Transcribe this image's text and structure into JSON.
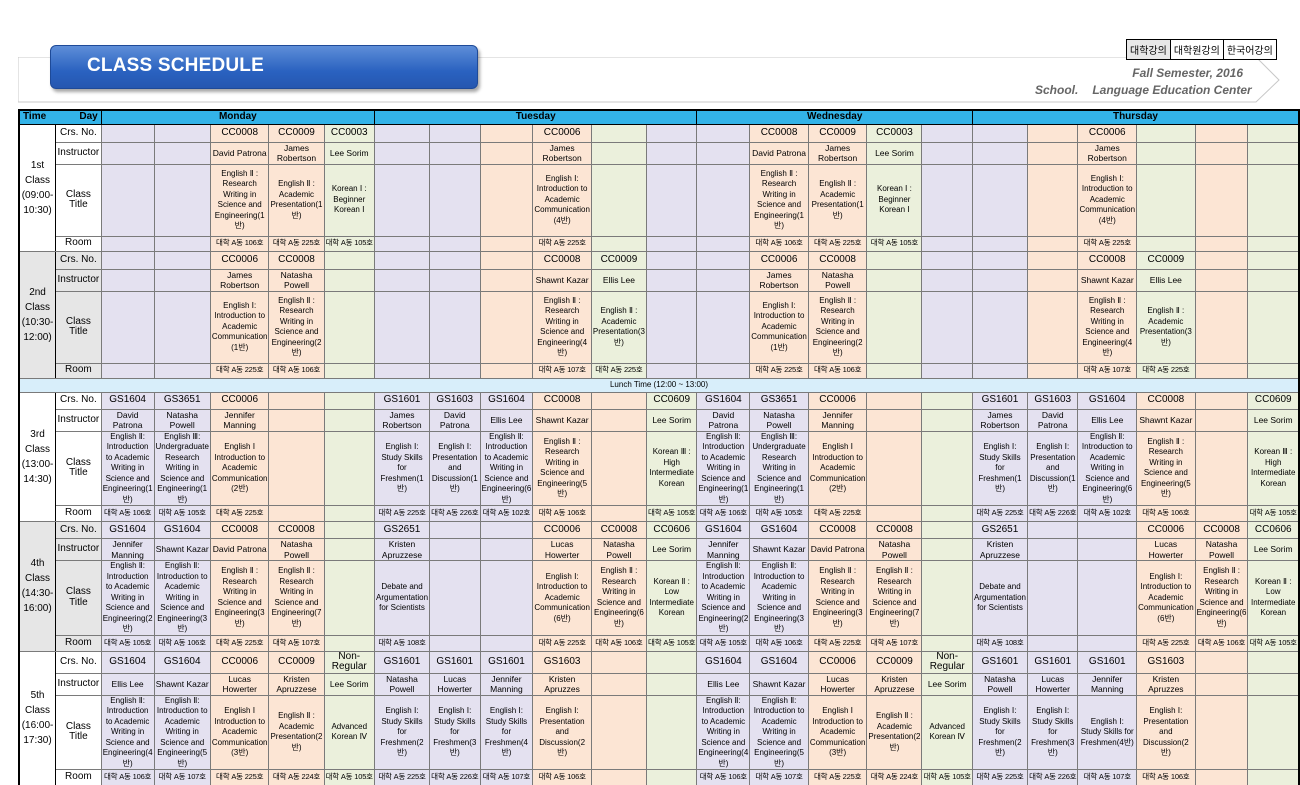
{
  "header": {
    "title": "CLASS SCHEDULE",
    "semester": "Fall Semester, 2016",
    "school_label": "School.",
    "center": "Language Education Center",
    "lang_tabs": [
      "대학강의",
      "대학원강의",
      "한국어강의"
    ]
  },
  "table": {
    "time_label": "Time",
    "day_label": "Day",
    "days": [
      "Monday",
      "Tuesday",
      "Wednesday",
      "Thursday"
    ],
    "row_labels": {
      "code": "Crs. No.",
      "instructor": "Instructor",
      "title": "Class Title",
      "room": "Room"
    },
    "lunch": "Lunch Time (12:00 ~ 13:00)",
    "colors": {
      "col1": "#e4e1f0",
      "col2": "#e4e1f0",
      "col3": "#fce5d4",
      "col4": "#fce5d4",
      "col5": "#ebf0dc",
      "header": "#33b3e8",
      "lunch": "#d8eefa"
    },
    "periods": [
      {
        "label": "1st Class (09:00-10:30)",
        "code": [
          "",
          "",
          "CC0008",
          "CC0009",
          "CC0003",
          "",
          "",
          "",
          "CC0006",
          "",
          "",
          "",
          "CC0008",
          "CC0009",
          "CC0003",
          "",
          "",
          "",
          "CC0006",
          ""
        ],
        "instructor": [
          "",
          "",
          "David Patrona",
          "James Robertson",
          "Lee Sorim",
          "",
          "",
          "",
          "James Robertson",
          "",
          "",
          "",
          "David Patrona",
          "James Robertson",
          "Lee Sorim",
          "",
          "",
          "",
          "James Robertson",
          ""
        ],
        "title": [
          "",
          "",
          "English Ⅱ : Research Writing in Science and Engineering(1반)",
          "English Ⅱ : Academic Presentation(1반)",
          "Korean Ⅰ : Beginner Korean Ⅰ",
          "",
          "",
          "",
          "English Ⅰ: Introduction to Academic Communication (4반)",
          "",
          "",
          "",
          "English Ⅱ : Research Writing in Science and Engineering(1반)",
          "English Ⅱ : Academic Presentation(1반)",
          "Korean Ⅰ : Beginner Korean Ⅰ",
          "",
          "",
          "",
          "English Ⅰ: Introduction to Academic Communication (4반)",
          ""
        ],
        "room": [
          "",
          "",
          "대학 A동 106호",
          "대학 A동 225호",
          "대학 A동 105호",
          "",
          "",
          "",
          "대학 A동 225호",
          "",
          "",
          "",
          "대학 A동 106호",
          "대학 A동 225호",
          "대학 A동 105호",
          "",
          "",
          "",
          "대학 A동 225호",
          ""
        ]
      },
      {
        "label": "2nd Class (10:30-12:00)",
        "code": [
          "",
          "",
          "CC0006",
          "CC0008",
          "",
          "",
          "",
          "",
          "CC0008",
          "CC0009",
          "",
          "",
          "CC0006",
          "CC0008",
          "",
          "",
          "",
          "",
          "CC0008",
          "CC0009"
        ],
        "instructor": [
          "",
          "",
          "James Robertson",
          "Natasha Powell",
          "",
          "",
          "",
          "",
          "Shawnt Kazar",
          "Ellis Lee",
          "",
          "",
          "James Robertson",
          "Natasha Powell",
          "",
          "",
          "",
          "",
          "Shawnt Kazar",
          "Ellis Lee"
        ],
        "title": [
          "",
          "",
          "English Ⅰ: Introduction to Academic Communication (1반)",
          "English Ⅱ : Research Writing in Science and Engineering(2반)",
          "",
          "",
          "",
          "",
          "English Ⅱ : Research Writing in Science and Engineering(4반)",
          "English Ⅱ : Academic Presentation(3반)",
          "",
          "",
          "English Ⅰ: Introduction to Academic Communication (1반)",
          "English Ⅱ : Research Writing in Science and Engineering(2반)",
          "",
          "",
          "",
          "",
          "English Ⅱ : Research Writing in Science and Engineering(4반)",
          "English Ⅱ : Academic Presentation(3반)"
        ],
        "room": [
          "",
          "",
          "대학 A동 225호",
          "대학 A동 106호",
          "",
          "",
          "",
          "",
          "대학 A동 107호",
          "대학 A동 225호",
          "",
          "",
          "대학 A동 225호",
          "대학 A동 106호",
          "",
          "",
          "",
          "",
          "대학 A동 107호",
          "대학 A동 225호"
        ]
      },
      {
        "label": "3rd Class (13:00-14:30)",
        "code": [
          "GS1604",
          "GS3651",
          "CC0006",
          "",
          "",
          "GS1601",
          "GS1603",
          "GS1604",
          "CC0008",
          "",
          "CC0609",
          "GS1604",
          "GS3651",
          "CC0006",
          "",
          "",
          "GS1601",
          "GS1603",
          "GS1604",
          "CC0008",
          "",
          "CC0609"
        ],
        "instructor": [
          "David Patrona",
          "Natasha Powell",
          "Jennifer Manning",
          "",
          "",
          "James Robertson",
          "David Patrona",
          "Ellis Lee",
          "Shawnt Kazar",
          "",
          "Lee Sorim",
          "David Patrona",
          "Natasha Powell",
          "Jennifer Manning",
          "",
          "",
          "James Robertson",
          "David Patrona",
          "Ellis Lee",
          "Shawnt Kazar",
          "",
          "Lee Sorim"
        ],
        "title": [
          "English Ⅱ: Introduction to Academic Writing in Science and Engineering(1반)",
          "English Ⅲ: Undergraduate Research Writing in Science and Engineering(1반)",
          "English Ⅰ Introduction to Academic Communication (2반)",
          "",
          "",
          "English Ⅰ: Study Skills for Freshmen(1반)",
          "English Ⅰ: Presentation and Discussion(1반)",
          "English Ⅱ: Introduction to Academic Writing in Science and Engineering(6반)",
          "English Ⅱ : Research Writing in Science and Engineering(5반)",
          "",
          "Korean Ⅲ : High Intermediate Korean",
          "English Ⅱ: Introduction to Academic Writing in Science and Engineering(1반)",
          "English Ⅲ: Undergraduate Research Writing in Science and Engineering(1반)",
          "English Ⅰ Introduction to Academic Communication (2반)",
          "",
          "",
          "English Ⅰ: Study Skills for Freshmen(1반)",
          "English Ⅰ: Presentation and Discussion(1반)",
          "English Ⅱ: Introduction to Academic Writing in Science and Engineering(6반)",
          "English Ⅱ : Research Writing in Science and Engineering(5반)",
          "",
          "Korean Ⅲ : High Intermediate Korean"
        ],
        "room": [
          "대학 A동 106호",
          "대학 A동 105호",
          "대학 A동 225호",
          "",
          "",
          "대학 A동 225호",
          "대학 A동 226호",
          "대학 A동 102호",
          "대학 A동 106호",
          "",
          "대학 A동 105호",
          "대학 A동 106호",
          "대학 A동 105호",
          "대학 A동 225호",
          "",
          "",
          "대학 A동 225호",
          "대학 A동 226호",
          "대학 A동 102호",
          "대학 A동 106호",
          "",
          "대학 A동 105호"
        ]
      },
      {
        "label": "4th Class (14:30-16:00)",
        "code": [
          "GS1604",
          "GS1604",
          "CC0008",
          "CC0008",
          "",
          "GS2651",
          "",
          "",
          "CC0006",
          "CC0008",
          "CC0606",
          "GS1604",
          "GS1604",
          "CC0008",
          "CC0008",
          "",
          "GS2651",
          "",
          "",
          "CC0006",
          "CC0008",
          "CC0606"
        ],
        "instructor": [
          "Jennifer Manning",
          "Shawnt Kazar",
          "David Patrona",
          "Natasha Powell",
          "",
          "Kristen Apruzzese",
          "",
          "",
          "Lucas Howerter",
          "Natasha Powell",
          "Lee Sorim",
          "Jennifer Manning",
          "Shawnt Kazar",
          "David Patrona",
          "Natasha Powell",
          "",
          "Kristen Apruzzese",
          "",
          "",
          "Lucas Howerter",
          "Natasha Powell",
          "Lee Sorim"
        ],
        "title": [
          "English Ⅱ: Introduction to Academic Writing in Science and Engineering(2반)",
          "English Ⅱ: Introduction to Academic Writing in Science and Engineering(3반)",
          "English Ⅱ : Research Writing in Science and Engineering(3반)",
          "English Ⅱ : Research Writing in Science and Engineering(7반)",
          "",
          "Debate and Argumentation for Scientists",
          "",
          "",
          "English Ⅰ: Introduction to Academic Communication (6반)",
          "English Ⅱ : Research Writing in Science and Engineering(6반)",
          "Korean Ⅱ : Low Intermediate Korean",
          "English Ⅱ: Introduction to Academic Writing in Science and Engineering(2반)",
          "English Ⅱ: Introduction to Academic Writing in Science and Engineering(3반)",
          "English Ⅱ : Research Writing in Science and Engineering(3반)",
          "English Ⅱ : Research Writing in Science and Engineering(7반)",
          "",
          "Debate and Argumentation for Scientists",
          "",
          "",
          "English Ⅰ: Introduction to Academic Communication (6반)",
          "English Ⅱ : Research Writing in Science and Engineering(6반)",
          "Korean Ⅱ : Low Intermediate Korean"
        ],
        "room": [
          "대학 A동 105호",
          "대학 A동 106호",
          "대학 A동 225호",
          "대학 A동 107호",
          "",
          "대학 A동 108호",
          "",
          "",
          "대학 A동 225호",
          "대학 A동 106호",
          "대학 A동 105호",
          "대학 A동 105호",
          "대학 A동 106호",
          "대학 A동 225호",
          "대학 A동 107호",
          "",
          "대학 A동 108호",
          "",
          "",
          "대학 A동 225호",
          "대학 A동 106호",
          "대학 A동 105호"
        ]
      },
      {
        "label": "5th Class (16:00-17:30)",
        "code": [
          "GS1604",
          "GS1604",
          "CC0006",
          "CC0009",
          "Non-Regular",
          "GS1601",
          "GS1601",
          "GS1601",
          "GS1603",
          "",
          "",
          "GS1604",
          "GS1604",
          "CC0006",
          "CC0009",
          "Non-Regular",
          "GS1601",
          "GS1601",
          "GS1601",
          "GS1603",
          "",
          ""
        ],
        "instructor": [
          "Ellis Lee",
          "Shawnt Kazar",
          "Lucas Howerter",
          "Kristen Apruzzese",
          "Lee Sorim",
          "Natasha Powell",
          "Lucas Howerter",
          "Jennifer Manning",
          "Kristen Apruzzes",
          "",
          "",
          "Ellis Lee",
          "Shawnt Kazar",
          "Lucas Howerter",
          "Kristen Apruzzese",
          "Lee Sorim",
          "Natasha Powell",
          "Lucas Howerter",
          "Jennifer Manning",
          "Kristen Apruzzes",
          "",
          ""
        ],
        "title": [
          "English Ⅱ: Introduction to Academic Writing in Science and Engineering(4반)",
          "English Ⅱ: Introduction to Academic Writing in Science and Engineering(5반)",
          "English Ⅰ Introduction to Academic Communication (3반)",
          "English Ⅱ : Academic Presentation(2반)",
          "Advanced Korean Ⅳ",
          "English Ⅰ: Study Skills for Freshmen(2반)",
          "English Ⅰ: Study Skills for Freshmen(3반)",
          "English Ⅰ: Study Skills for Freshmen(4반)",
          "English Ⅰ: Presentation and Discussion(2반)",
          "",
          "",
          "English Ⅱ: Introduction to Academic Writing in Science and Engineering(4반)",
          "English Ⅱ: Introduction to Academic Writing in Science and Engineering(5반)",
          "English Ⅰ Introduction to Academic Communication (3반)",
          "English Ⅱ : Academic Presentation(2반)",
          "Advanced Korean Ⅳ",
          "English Ⅰ: Study Skills for Freshmen(2반)",
          "English Ⅰ: Study Skills for Freshmen(3반)",
          "English Ⅰ: Study Skills for Freshmen(4반)",
          "English Ⅰ: Presentation and Discussion(2반)",
          "",
          ""
        ],
        "room": [
          "대학 A동 106호",
          "대학 A동 107호",
          "대학 A동 225호",
          "대학 A동 224호",
          "대학 A동 105호",
          "대학 A동 225호",
          "대학 A동 226호",
          "대학 A동 107호",
          "대학 A동 106호",
          "",
          "",
          "대학 A동 106호",
          "대학 A동 107호",
          "대학 A동 225호",
          "대학 A동 224호",
          "대학 A동 105호",
          "대학 A동 225호",
          "대학 A동 226호",
          "대학 A동 107호",
          "대학 A동 106호",
          "",
          ""
        ]
      }
    ]
  }
}
